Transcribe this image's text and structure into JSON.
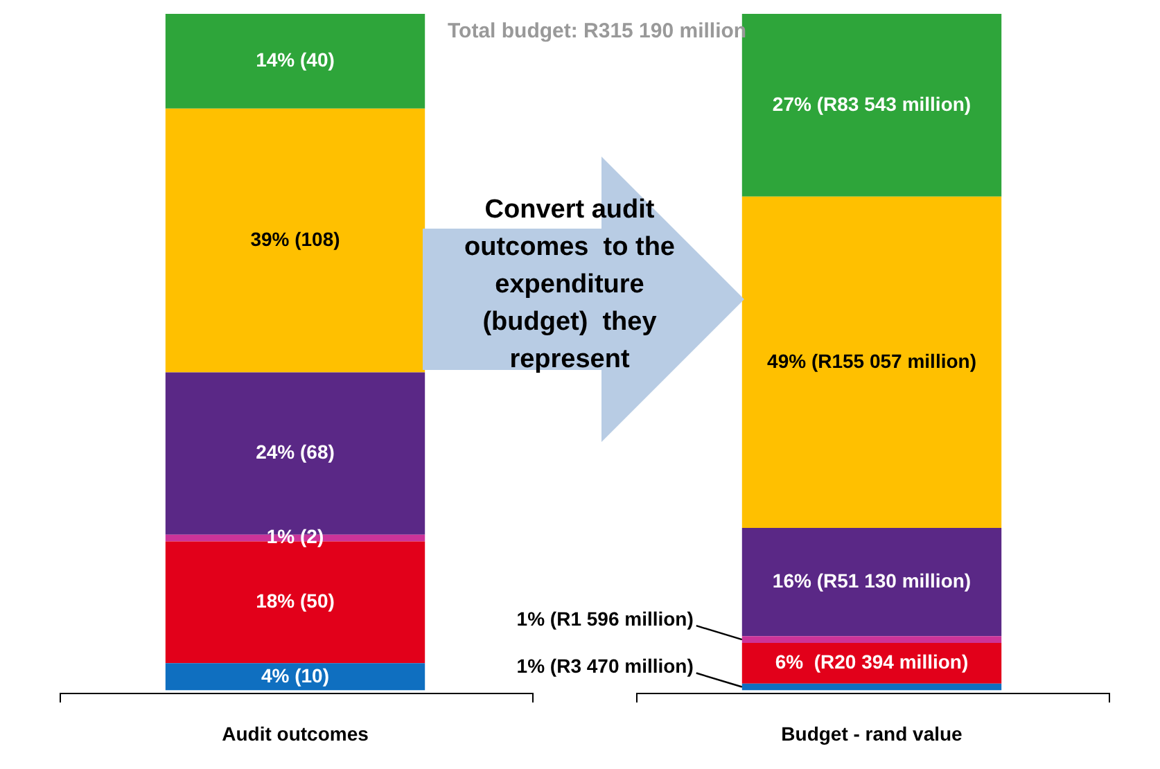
{
  "chart_data": {
    "type": "bar",
    "stacked": true,
    "categories": [
      "Audit outcomes",
      "Budget - rand value"
    ],
    "ylim": [
      0,
      100
    ],
    "tick_labels": "x",
    "legend": false,
    "series": [
      {
        "color": "#0f6fc0",
        "values": [
          4,
          1
        ],
        "value_labels": [
          "4% (10)",
          "1% (R3 470 million)"
        ]
      },
      {
        "color": "#e2001a",
        "values": [
          18,
          6
        ],
        "value_labels": [
          "18% (50)",
          "6%  (R20 394 million)"
        ]
      },
      {
        "color": "#cc3399",
        "values": [
          1,
          1
        ],
        "value_labels": [
          "1% (2)",
          "1% (R1 596 million)"
        ]
      },
      {
        "color": "#5a2886",
        "values": [
          24,
          16
        ],
        "value_labels": [
          "24% (68)",
          "16% (R51 130 million)"
        ]
      },
      {
        "color": "#ffc000",
        "values": [
          39,
          49
        ],
        "value_labels": [
          "39% (108)",
          "49% (R155 057 million)"
        ]
      },
      {
        "color": "#2ea53a",
        "values": [
          14,
          27
        ],
        "value_labels": [
          "14% (40)",
          "27% (R83 543 million)"
        ]
      }
    ],
    "annotations": [
      "Total budget: R315 190 million",
      "Convert audit outcomes  to the expenditure (budget)  they represent"
    ]
  }
}
